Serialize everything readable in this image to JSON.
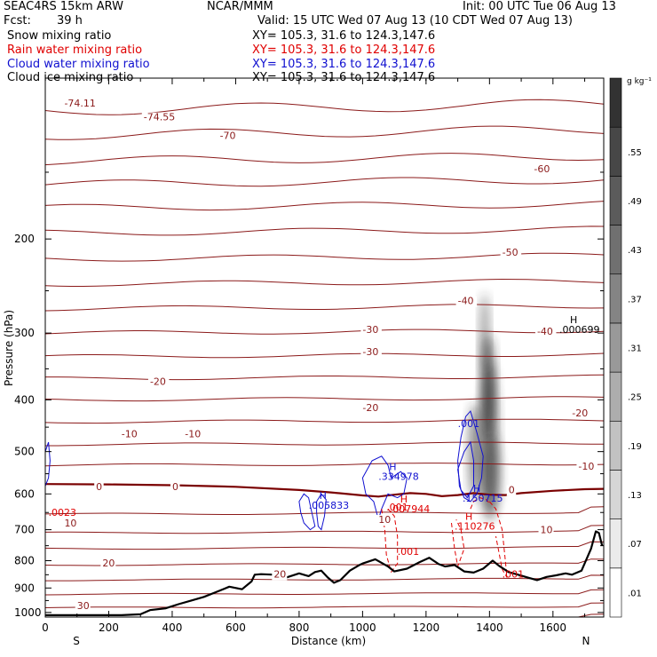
{
  "header": {
    "model": "SEAC4RS 15km ARW",
    "org": "NCAR/MMM",
    "init": "Init: 00 UTC Tue 06 Aug 13",
    "fcst_label": "Fcst:",
    "fcst_value": "39 h",
    "valid": "Valid: 15 UTC Wed 07 Aug 13 (10 CDT Wed 07 Aug 13)"
  },
  "fields": [
    {
      "name": "Snow mixing ratio",
      "xy": "XY= 105.3, 31.6 to 124.3,147.6",
      "color": "#000000"
    },
    {
      "name": "Rain water mixing ratio",
      "xy": "XY= 105.3, 31.6 to 124.3,147.6",
      "color": "#e00000"
    },
    {
      "name": "Cloud water mixing ratio",
      "xy": "XY= 105.3, 31.6 to 124.3,147.6",
      "color": "#1010d0"
    },
    {
      "name": "Cloud ice mixing ratio",
      "xy": "XY= 105.3, 31.6 to 124.3,147.6",
      "color": "#000000"
    }
  ],
  "colors": {
    "temperature": "#8b1a1a",
    "freezing": "#7a0000",
    "rain": "#e00000",
    "cloud": "#1010d0",
    "terrain": "#000000"
  },
  "chart_data": {
    "type": "cross-section",
    "xlabel": "Distance (km)",
    "ylabel": "Pressure (hPa)",
    "xlim": [
      0,
      1760
    ],
    "ylim": [
      1020,
      100
    ],
    "y_log": true,
    "x_ticks": [
      "0",
      "200",
      "400",
      "600",
      "800",
      "1000",
      "1200",
      "1400",
      "1600"
    ],
    "y_ticks": [
      "200",
      "300",
      "400",
      "500",
      "600",
      "700",
      "800",
      "900",
      "1000"
    ],
    "x_end_labels": {
      "left": "S",
      "right": "N"
    },
    "colorbar": {
      "unit": "g kg⁻¹",
      "levels": [
        ".01",
        ".07",
        ".13",
        ".19",
        ".25",
        ".31",
        ".37",
        ".43",
        ".49",
        ".55"
      ]
    },
    "temperature_contours_C": [
      -70,
      -60,
      -50,
      -40,
      -30,
      -20,
      -10,
      0,
      10,
      20,
      30
    ],
    "contour_labels": [
      "-74.11",
      "-74.55",
      "-70",
      "-60",
      "-50",
      "-40",
      "-40",
      "-30",
      "-30",
      "-20",
      "-20",
      "-20",
      "-10",
      "-10",
      "-10",
      "0",
      "0",
      "0",
      "10",
      "10",
      "10",
      "20",
      "20",
      "30"
    ],
    "annotations": [
      {
        "symbol": "H",
        "value": ".000699",
        "x_km": 1620,
        "p_hPa": 300,
        "color": "#000000"
      },
      {
        "symbol": "",
        "value": ".001",
        "x_km": 1300,
        "p_hPa": 450,
        "color": "#1010d0"
      },
      {
        "symbol": "H",
        "value": ".334978",
        "x_km": 1050,
        "p_hPa": 565,
        "color": "#1010d0"
      },
      {
        "symbol": "H",
        "value": ".150715",
        "x_km": 1315,
        "p_hPa": 620,
        "color": "#1010d0"
      },
      {
        "symbol": "H",
        "value": ".005833",
        "x_km": 830,
        "p_hPa": 640,
        "color": "#1010d0"
      },
      {
        "symbol": "H",
        "value": ".007944",
        "x_km": 1085,
        "p_hPa": 650,
        "color": "#e00000"
      },
      {
        "symbol": "",
        "value": ".001",
        "x_km": 1075,
        "p_hPa": 645,
        "color": "#e00000"
      },
      {
        "symbol": "H",
        "value": ".110276",
        "x_km": 1290,
        "p_hPa": 700,
        "color": "#e00000"
      },
      {
        "symbol": "",
        "value": ".001",
        "x_km": 1110,
        "p_hPa": 780,
        "color": "#e00000"
      },
      {
        "symbol": "",
        "value": ".001",
        "x_km": 1440,
        "p_hPa": 860,
        "color": "#e00000"
      },
      {
        "symbol": "",
        "value": ".0023",
        "x_km": 10,
        "p_hPa": 660,
        "color": "#e00000"
      }
    ],
    "terrain_surface_pressure": {
      "x_km": [
        0,
        120,
        240,
        300,
        330,
        380,
        420,
        460,
        500,
        540,
        580,
        620,
        650,
        660,
        680,
        720,
        760,
        800,
        830,
        850,
        870,
        890,
        910,
        930,
        960,
        990,
        1000,
        1040,
        1080,
        1100,
        1140,
        1180,
        1210,
        1240,
        1260,
        1290,
        1320,
        1350,
        1380,
        1410,
        1430,
        1460,
        1490,
        1520,
        1550,
        1580,
        1610,
        1640,
        1660,
        1690,
        1720,
        1735,
        1745,
        1755
      ],
      "p_hPa": [
        1012,
        1012,
        1012,
        1008,
        990,
        982,
        965,
        950,
        935,
        915,
        895,
        905,
        875,
        850,
        848,
        850,
        860,
        845,
        855,
        840,
        835,
        860,
        880,
        870,
        835,
        815,
        810,
        795,
        820,
        838,
        828,
        805,
        790,
        812,
        820,
        815,
        838,
        842,
        828,
        800,
        818,
        840,
        850,
        860,
        870,
        858,
        852,
        845,
        850,
        835,
        760,
        705,
        710,
        750
      ]
    },
    "freezing_level_hPa": {
      "x_km": [
        0,
        200,
        400,
        600,
        800,
        900,
        1000,
        1050,
        1100,
        1150,
        1200,
        1250,
        1300,
        1350,
        1400,
        1450,
        1500,
        1600,
        1700,
        1760
      ],
      "p_hPa": [
        575,
        576,
        578,
        582,
        590,
        596,
        604,
        607,
        602,
        598,
        600,
        606,
        603,
        598,
        602,
        603,
        598,
        592,
        588,
        587
      ]
    }
  }
}
